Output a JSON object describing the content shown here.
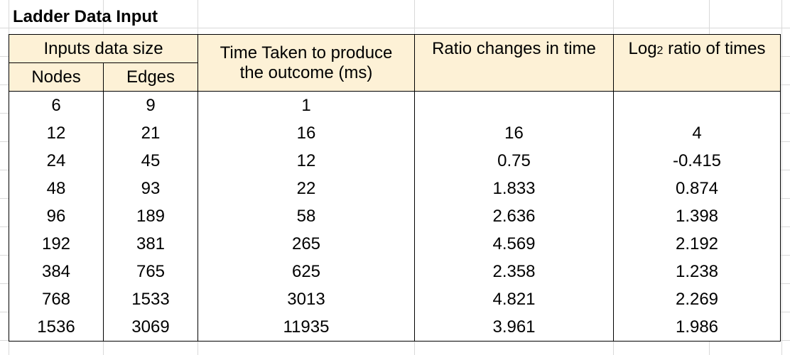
{
  "title": "Ladder Data Input",
  "colors": {
    "header_fill": "#fdf1d6",
    "gridline": "#d9d9d9",
    "border": "#000000"
  },
  "headers": {
    "inputs_group": "Inputs data size",
    "nodes": "Nodes",
    "edges": "Edges",
    "time_line1": "Time Taken to produce",
    "time_line2": "the outcome (ms)",
    "ratio": "Ratio changes in time",
    "log_prefix": "Log",
    "log_sub": "2",
    "log_suffix": " ratio of times"
  },
  "rows": [
    {
      "nodes": "6",
      "edges": "9",
      "time": "1",
      "ratio": "",
      "log": ""
    },
    {
      "nodes": "12",
      "edges": "21",
      "time": "16",
      "ratio": "16",
      "log": "4"
    },
    {
      "nodes": "24",
      "edges": "45",
      "time": "12",
      "ratio": "0.75",
      "log": "-0.415"
    },
    {
      "nodes": "48",
      "edges": "93",
      "time": "22",
      "ratio": "1.833",
      "log": "0.874"
    },
    {
      "nodes": "96",
      "edges": "189",
      "time": "58",
      "ratio": "2.636",
      "log": "1.398"
    },
    {
      "nodes": "192",
      "edges": "381",
      "time": "265",
      "ratio": "4.569",
      "log": "2.192"
    },
    {
      "nodes": "384",
      "edges": "765",
      "time": "625",
      "ratio": "2.358",
      "log": "1.238"
    },
    {
      "nodes": "768",
      "edges": "1533",
      "time": "3013",
      "ratio": "4.821",
      "log": "2.269"
    },
    {
      "nodes": "1536",
      "edges": "3069",
      "time": "11935",
      "ratio": "3.961",
      "log": "1.986"
    }
  ]
}
